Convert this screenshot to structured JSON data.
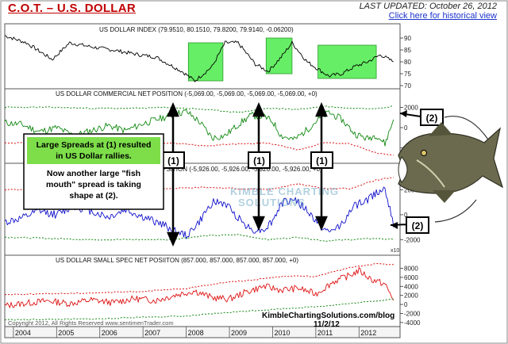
{
  "header": {
    "title": "C.O.T. – U.S. DOLLAR",
    "last_updated": "LAST UPDATED:  October 26, 2012",
    "historical_link": "Click here for historical view"
  },
  "footer": {
    "copyright": "Copyright 2012, All Rights Reserved   www.sentimenTrader.com",
    "kimble_site": "KimbleChartingSolutions.com/blog",
    "kimble_date": "11/2/12"
  },
  "annotations": {
    "box_line1": "Large Spreads at (1) resulted",
    "box_line2": "in US Dollar rallies.",
    "box_line3": "Now another large \"fish",
    "box_line4": "mouth\" spread is taking",
    "box_line5": "shape at (2).",
    "marker1": "(1)",
    "marker2": "(2)",
    "watermark_line1": "KIMBLE CHARTING",
    "watermark_line2": "SOLUTIONS"
  },
  "colors": {
    "title": "#c00000",
    "price_line": "#000000",
    "highlight": "#66ee66",
    "commercial": "#118811",
    "large_spec": "#1010cc",
    "small_spec": "#dd1111",
    "band_red": "#dd1111",
    "band_green": "#118811",
    "callout_box": "#7dde4a"
  },
  "chart_data": [
    {
      "type": "line",
      "title": "US DOLLAR INDEX (79.9510, 80.1510, 79.8200, 79.9140, -0.06200)",
      "ylim": [
        70,
        92
      ],
      "yticks": [
        "90",
        "85",
        "80",
        "75",
        "70"
      ],
      "x": [
        2003.8,
        2004.3,
        2004.9,
        2005.3,
        2005.9,
        2006.3,
        2006.9,
        2007.3,
        2007.9,
        2008.2,
        2008.6,
        2008.9,
        2009.2,
        2009.6,
        2009.9,
        2010.2,
        2010.45,
        2010.8,
        2011.3,
        2011.6,
        2011.9,
        2012.2,
        2012.5,
        2012.8
      ],
      "values": [
        91,
        88,
        81,
        88,
        86,
        85,
        83,
        82,
        76,
        72,
        78,
        88,
        88,
        79,
        76,
        82,
        88,
        80,
        74,
        75,
        78,
        80,
        83,
        80
      ],
      "highlight_zones": [
        [
          2008.05,
          2008.85
        ],
        [
          2009.85,
          2010.45
        ],
        [
          2011.05,
          2012.4
        ]
      ]
    },
    {
      "type": "line",
      "title": "US DOLLAR COMMERCIAL NET POSITION (-5,069.00, -5,069.00, -5,069.00, -5,069.00, +0)",
      "yticks": [
        "2000",
        "0",
        "-2000"
      ],
      "series": [
        {
          "name": "",
          "x": [
            2003.8,
            2004.2,
            2004.6,
            2005.0,
            2005.4,
            2005.8,
            2006.2,
            2006.6,
            2007.0,
            2007.4,
            2007.8,
            2008.0,
            2008.3,
            2008.6,
            2008.9,
            2009.2,
            2009.5,
            2009.8,
            2010.0,
            2010.2,
            2010.5,
            2010.8,
            2011.0,
            2011.3,
            2011.6,
            2011.9,
            2012.2,
            2012.4,
            2012.6,
            2012.8
          ],
          "values": [
            500,
            300,
            -400,
            0,
            -800,
            -300,
            200,
            -300,
            400,
            900,
            1400,
            1600,
            600,
            -1000,
            -800,
            300,
            1200,
            1100,
            600,
            -800,
            -1200,
            -200,
            600,
            1500,
            800,
            -600,
            -1100,
            -700,
            -1600,
            800
          ]
        },
        {
          "name": "",
          "x": [
            2003.8,
            2004.8,
            2005.8,
            2006.8,
            2007.6,
            2008.4,
            2009.2,
            2009.9,
            2010.6,
            2011.2,
            2011.8,
            2012.4,
            2012.8
          ],
          "values": [
            2000,
            2000,
            1900,
            1900,
            2000,
            1800,
            1500,
            1900,
            1800,
            2100,
            1900,
            1900,
            2100
          ]
        },
        {
          "name": "",
          "x": [
            2003.8,
            2004.8,
            2005.8,
            2006.8,
            2007.6,
            2008.4,
            2009.2,
            2009.9,
            2010.6,
            2011.2,
            2011.8,
            2012.4,
            2012.8
          ],
          "values": [
            -1500,
            -1500,
            -1600,
            -1500,
            -1500,
            -1800,
            -1600,
            -1500,
            -2200,
            -1500,
            -1600,
            -2500,
            -2700
          ]
        }
      ]
    },
    {
      "type": "line",
      "title": "US DOLLAR LARGE SPEC NET POSITION (-5,926.00, -5,926.00, -5,926.00, -5,926.00, +0)",
      "title_visible": "PSITION (-5,926.00, -5,926.00, -5,926.00, -5,926.00, +0)",
      "yticks": [
        "2000",
        "0",
        "-2000"
      ],
      "unit_label": "x10",
      "series": [
        {
          "name": "",
          "x": [
            2003.8,
            2004.2,
            2004.6,
            2005.0,
            2005.4,
            2005.8,
            2006.2,
            2006.6,
            2007.0,
            2007.4,
            2007.8,
            2008.0,
            2008.3,
            2008.6,
            2008.9,
            2009.2,
            2009.5,
            2009.8,
            2010.0,
            2010.2,
            2010.5,
            2010.8,
            2011.0,
            2011.3,
            2011.6,
            2011.9,
            2012.2,
            2012.4,
            2012.6,
            2012.8
          ],
          "values": [
            -600,
            -300,
            300,
            0,
            700,
            300,
            -200,
            400,
            -200,
            -700,
            -1400,
            -1700,
            -600,
            1000,
            900,
            -200,
            -1200,
            -1200,
            -500,
            900,
            1300,
            300,
            -500,
            -1500,
            -700,
            700,
            1200,
            1800,
            2200,
            -1000
          ]
        },
        {
          "name": "",
          "x": [
            2003.8,
            2004.8,
            2005.8,
            2006.8,
            2007.6,
            2008.4,
            2009.2,
            2009.9,
            2010.6,
            2011.2,
            2011.8,
            2012.4,
            2012.8
          ],
          "values": [
            2000,
            2100,
            2200,
            2100,
            2100,
            2200,
            2100,
            2000,
            2500,
            2100,
            2100,
            2800,
            3000
          ]
        },
        {
          "name": "",
          "x": [
            2003.8,
            2004.8,
            2005.8,
            2006.8,
            2007.6,
            2008.4,
            2009.2,
            2009.9,
            2010.6,
            2011.2,
            2011.8,
            2012.4,
            2012.8
          ],
          "values": [
            -1800,
            -1900,
            -2000,
            -2000,
            -2000,
            -1700,
            -1600,
            -2000,
            -1800,
            -2100,
            -2000,
            -1900,
            -2000
          ]
        }
      ]
    },
    {
      "type": "line",
      "title": "US DOLLAR SMALL SPEC NET POSITION (857.000, 857.000, 857.000, 857.000, +0)",
      "title_visible": "US DOLLAR SMALL SPEC NET POSIITON (857.000, 857.000, 857.000, 857.000, +0)",
      "ylim": [
        -4200,
        9500
      ],
      "yticks": [
        "8000",
        "6000",
        "4000",
        "2000",
        "0",
        "-2000",
        "-4000"
      ],
      "series": [
        {
          "name": "",
          "x": [
            2003.8,
            2004.3,
            2004.8,
            2005.3,
            2005.8,
            2006.3,
            2006.8,
            2007.3,
            2007.8,
            2008.2,
            2008.6,
            2009.0,
            2009.4,
            2009.8,
            2010.2,
            2010.6,
            2011.0,
            2011.4,
            2011.8,
            2012.0,
            2012.3,
            2012.6,
            2012.8
          ],
          "values": [
            -300,
            300,
            800,
            200,
            1000,
            400,
            1300,
            900,
            2200,
            3000,
            1500,
            1200,
            2800,
            4000,
            3200,
            3600,
            2300,
            5000,
            6500,
            7500,
            5500,
            4500,
            900
          ]
        },
        {
          "name": "",
          "x": [
            2003.8,
            2005.0,
            2006.0,
            2007.0,
            2008.0,
            2008.8,
            2009.5,
            2010.3,
            2011.0,
            2011.8,
            2012.4,
            2012.8
          ],
          "values": [
            2200,
            2400,
            2600,
            2900,
            3500,
            4800,
            5400,
            6300,
            6200,
            8200,
            9000,
            8800
          ]
        },
        {
          "name": "",
          "x": [
            2003.8,
            2005.0,
            2006.0,
            2007.0,
            2008.0,
            2008.8,
            2009.5,
            2010.3,
            2011.0,
            2011.8,
            2012.4,
            2012.8
          ],
          "values": [
            -3400,
            -3300,
            -3200,
            -2800,
            -2600,
            -1900,
            -1400,
            -900,
            -500,
            200,
            800,
            1200
          ]
        }
      ]
    }
  ],
  "x_axis": {
    "labels": [
      "2004",
      "2005",
      "2006",
      "2007",
      "2008",
      "2009",
      "2010",
      "2011",
      "2012"
    ],
    "range": [
      2003.8,
      2012.95
    ]
  }
}
